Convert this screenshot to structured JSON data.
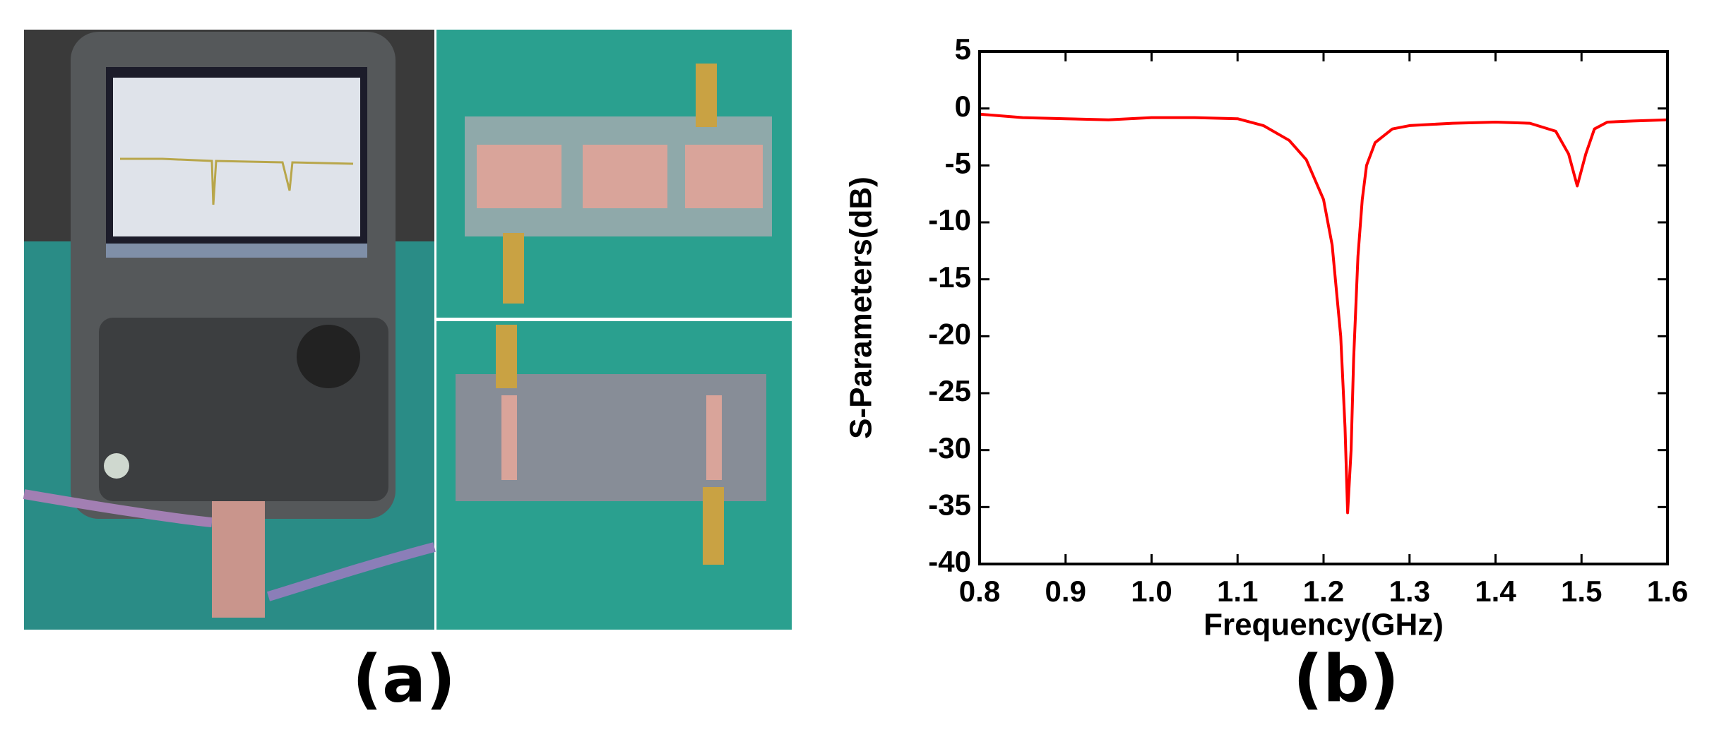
{
  "panel_labels": [
    "(a)",
    "(b)"
  ],
  "chart_data": {
    "type": "line",
    "xlabel": "Frequency(GHz)",
    "ylabel": "S-Parameters(dB)",
    "x": [
      0.8,
      0.85,
      0.9,
      0.95,
      1.0,
      1.05,
      1.1,
      1.13,
      1.16,
      1.18,
      1.2,
      1.21,
      1.22,
      1.225,
      1.228,
      1.232,
      1.235,
      1.24,
      1.245,
      1.25,
      1.26,
      1.28,
      1.3,
      1.35,
      1.4,
      1.44,
      1.47,
      1.485,
      1.495,
      1.505,
      1.515,
      1.53,
      1.56,
      1.6
    ],
    "values": [
      -0.5,
      -0.8,
      -0.9,
      -1.0,
      -0.8,
      -0.8,
      -0.9,
      -1.5,
      -2.8,
      -4.5,
      -8,
      -12,
      -20,
      -28,
      -35.5,
      -30,
      -22,
      -13,
      -8,
      -5,
      -3,
      -1.8,
      -1.5,
      -1.3,
      -1.2,
      -1.3,
      -2,
      -4,
      -6.8,
      -4,
      -1.8,
      -1.2,
      -1.1,
      -1.0
    ],
    "color": "#ff0000",
    "xlim": [
      0.8,
      1.6
    ],
    "xticks": [
      {
        "value": 0.8,
        "label": "0.8"
      },
      {
        "value": 0.9,
        "label": "0.9"
      },
      {
        "value": 1.0,
        "label": "1.0"
      },
      {
        "value": 1.1,
        "label": "1.1"
      },
      {
        "value": 1.2,
        "label": "1.2"
      },
      {
        "value": 1.3,
        "label": "1.3"
      },
      {
        "value": 1.4,
        "label": "1.4"
      },
      {
        "value": 1.5,
        "label": "1.5"
      },
      {
        "value": 1.6,
        "label": "1.6"
      }
    ],
    "ylim": [
      -40,
      5
    ],
    "yticks": [
      -40,
      -35,
      -30,
      -25,
      -20,
      -15,
      -10,
      -5,
      0,
      5
    ]
  }
}
